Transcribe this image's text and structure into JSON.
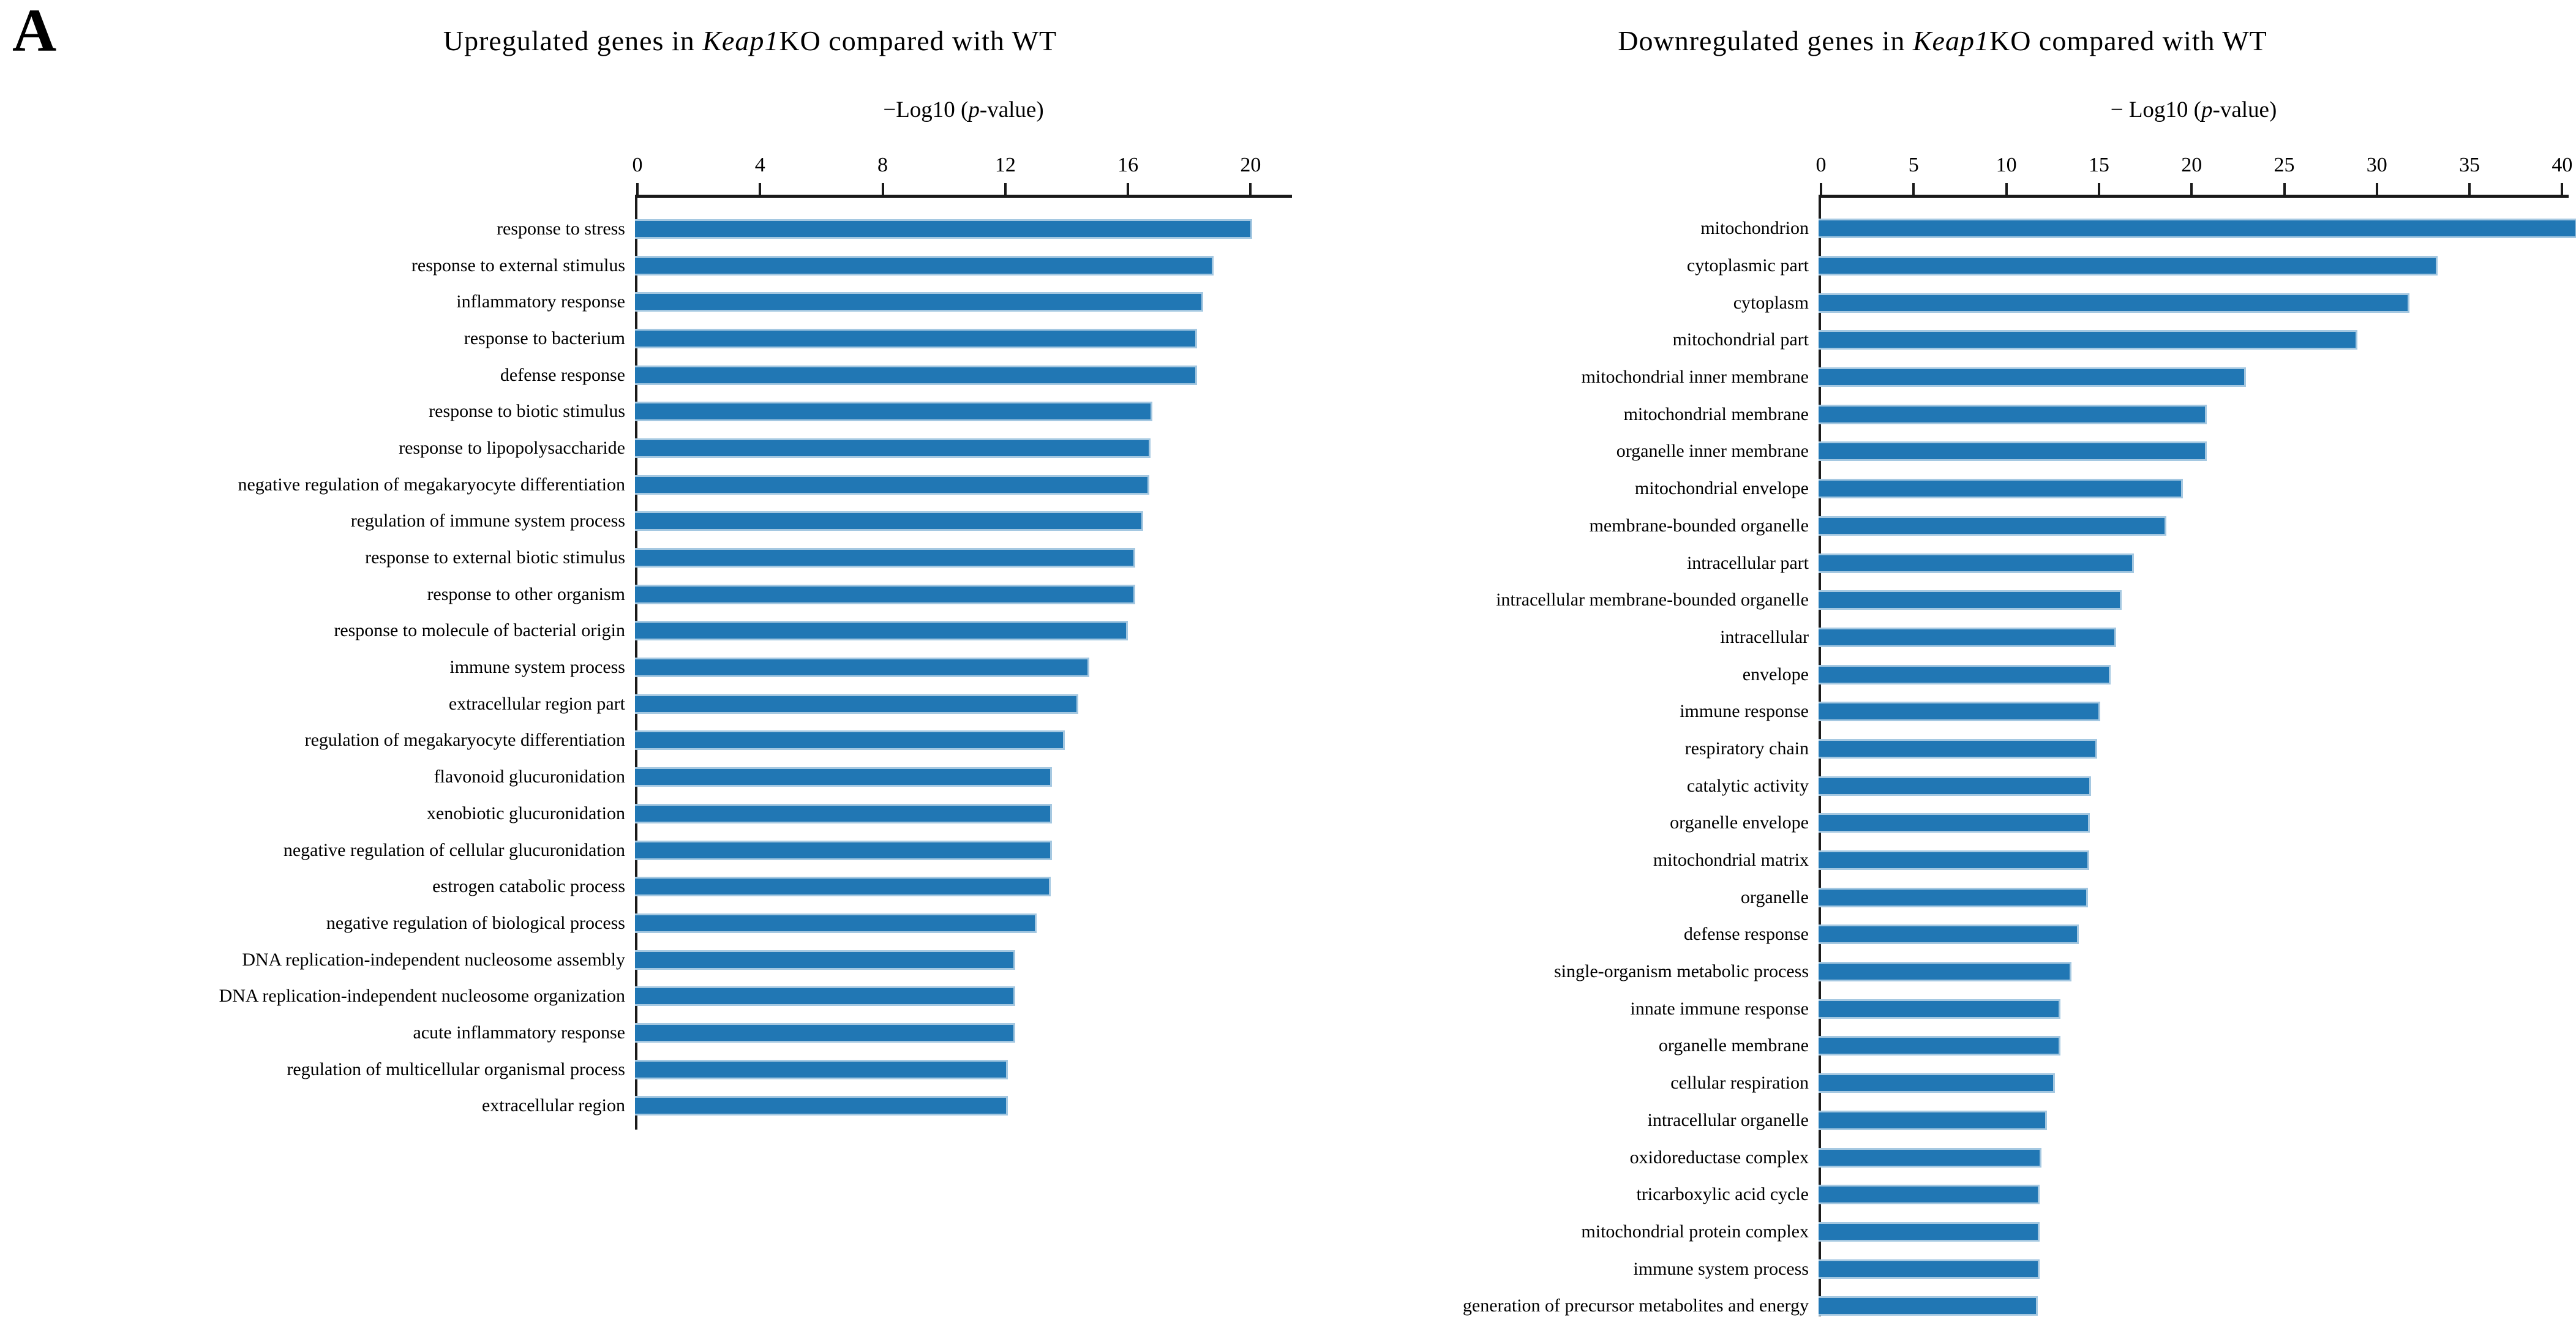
{
  "panel_label": "A",
  "bar_style": {
    "fill": "#2177b4",
    "edge": "#a5c8e1",
    "axis_color": "#1a1a1a"
  },
  "chart_data": [
    {
      "type": "bar",
      "orientation": "horizontal",
      "title_prefix": "Upregulated genes in ",
      "title_italic": "Keap1",
      "title_suffix": "KO compared with WT",
      "xlabel_prefix": "−Log10 (",
      "xlabel_italic": "p",
      "xlabel_suffix": "-value)",
      "xlim": [
        0,
        21.35
      ],
      "xticks": [
        0,
        4,
        8,
        12,
        16,
        20
      ],
      "grid": false,
      "legend": null,
      "categories": [
        "response to stress",
        "response to external stimulus",
        "inflammatory response",
        "response to bacterium",
        "defense response",
        "response to biotic stimulus",
        "response to lipopolysaccharide",
        "negative regulation of megakaryocyte differentiation",
        "regulation of immune system process",
        "response to external biotic stimulus",
        "response to other organism",
        "response to molecule of bacterial origin",
        "immune system process",
        "extracellular region part",
        "regulation of megakaryocyte differentiation",
        "flavonoid glucuronidation",
        "xenobiotic glucuronidation",
        "negative regulation of cellular glucuronidation",
        "estrogen catabolic process",
        "negative regulation of biological process",
        "DNA replication-independent nucleosome assembly",
        "DNA replication-independent nucleosome organization",
        "acute inflammatory response",
        "regulation of multicellular organismal process",
        "extracellular region"
      ],
      "values": [
        20.0,
        18.75,
        18.4,
        18.2,
        18.2,
        16.75,
        16.7,
        16.65,
        16.45,
        16.2,
        16.2,
        15.95,
        14.7,
        14.35,
        13.9,
        13.5,
        13.5,
        13.5,
        13.45,
        13.0,
        12.3,
        12.3,
        12.3,
        12.05,
        12.05
      ]
    },
    {
      "type": "bar",
      "orientation": "horizontal",
      "title_prefix": "Downregulated genes in ",
      "title_italic": "Keap1",
      "title_suffix": "KO compared with WT",
      "xlabel_prefix": "− Log10 (",
      "xlabel_italic": "p",
      "xlabel_suffix": "-value)",
      "xlim": [
        0,
        40.35
      ],
      "xticks": [
        0,
        5,
        10,
        15,
        20,
        25,
        30,
        35,
        40
      ],
      "grid": false,
      "legend": null,
      "categories": [
        "mitochondrion",
        "cytoplasmic part",
        "cytoplasm",
        "mitochondrial part",
        "mitochondrial inner membrane",
        "mitochondrial membrane",
        "organelle inner membrane",
        "mitochondrial envelope",
        "membrane-bounded organelle",
        "intracellular part",
        "intracellular membrane-bounded organelle",
        "intracellular",
        "envelope",
        "immune response",
        "respiratory chain",
        "catalytic activity",
        "organelle envelope",
        "mitochondrial matrix",
        "organelle",
        "defense response",
        "single-organism metabolic process",
        "innate immune response",
        "organelle membrane",
        "cellular respiration",
        "intracellular organelle",
        "oxidoreductase complex",
        "tricarboxylic acid cycle",
        "mitochondrial protein complex",
        "immune system process",
        "generation of precursor metabolites and energy"
      ],
      "values": [
        40.7,
        33.2,
        31.7,
        28.9,
        22.9,
        20.8,
        20.8,
        19.5,
        18.6,
        16.85,
        16.2,
        15.9,
        15.6,
        15.05,
        14.9,
        14.55,
        14.5,
        14.45,
        14.4,
        13.9,
        13.5,
        12.9,
        12.9,
        12.6,
        12.2,
        11.9,
        11.8,
        11.8,
        11.8,
        11.7
      ]
    }
  ]
}
